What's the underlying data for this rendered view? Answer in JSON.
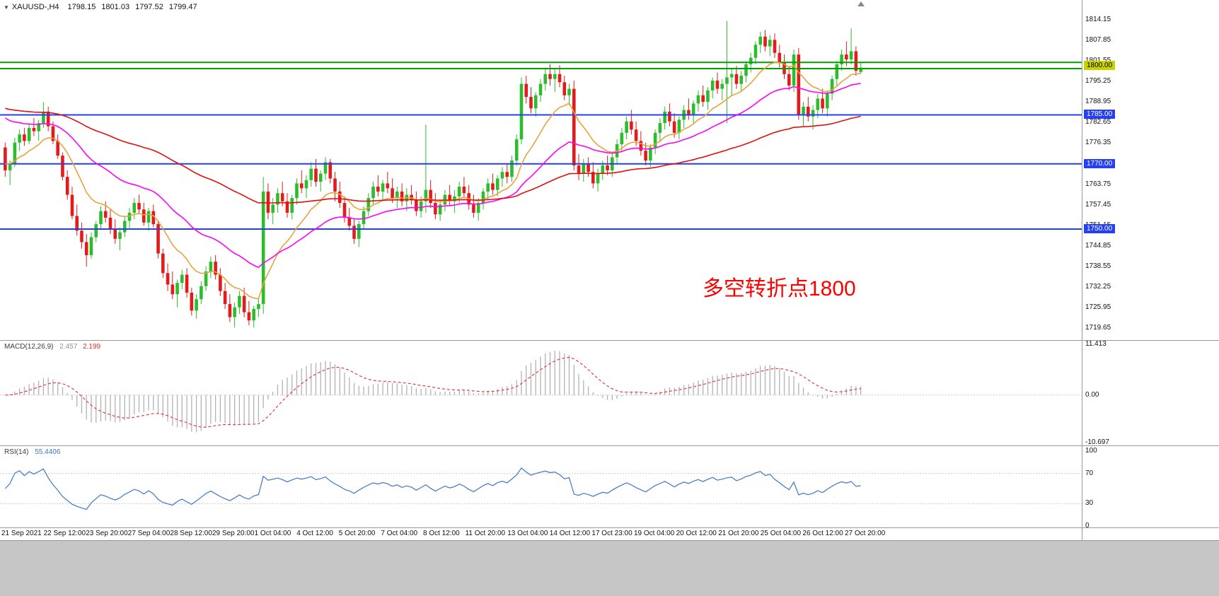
{
  "symbol_bar": {
    "dropdown_icon": "▼",
    "symbol": "XAUUSD-,H4",
    "open": "1798.15",
    "high": "1801.03",
    "low": "1797.52",
    "close": "1799.47"
  },
  "annotation": {
    "text": "多空转折点1800",
    "color": "#ff0000"
  },
  "colors": {
    "bull": "#2bbd2b",
    "bear": "#e41b1b",
    "hline_green": "#00a000",
    "hline_blue": "#2440f0",
    "marker_bg": "#c8d200",
    "ma_fast": "#e8a33d",
    "ma_mid": "#ff00ff",
    "ma_slow": "#e01010",
    "macd_hist": "#b2b2b2",
    "macd_signal": "#e03030",
    "rsi_line": "#3f76c8",
    "panel_border": "#999999",
    "level_dotted": "#c8c8c8"
  },
  "chart_data": {
    "type": "candlestick",
    "title": "XAUUSD-,H4",
    "timeframe": "H4",
    "ylim": [
      1719.65,
      1814.15
    ],
    "price_ticks": [
      "1814.15",
      "1807.85",
      "1801.55",
      "1795.25",
      "1788.95",
      "1782.65",
      "1776.35",
      "1770.05",
      "1763.75",
      "1757.45",
      "1751.15",
      "1744.85",
      "1738.55",
      "1732.25",
      "1725.95",
      "1719.65"
    ],
    "time_labels": [
      "21 Sep 2021",
      "22 Sep 12:00",
      "23 Sep 20:00",
      "27 Sep 04:00",
      "28 Sep 12:00",
      "29 Sep 20:00",
      "1 Oct 04:00",
      "4 Oct 12:00",
      "5 Oct 20:00",
      "7 Oct 04:00",
      "8 Oct 12:00",
      "11 Oct 20:00",
      "13 Oct 04:00",
      "14 Oct 12:00",
      "17 Oct 23:00",
      "19 Oct 04:00",
      "20 Oct 12:00",
      "21 Oct 20:00",
      "25 Oct 04:00",
      "26 Oct 12:00",
      "27 Oct 20:00"
    ],
    "candles": [
      [
        1775,
        1776.5,
        1766,
        1768
      ],
      [
        1768,
        1771,
        1763.5,
        1770
      ],
      [
        1770,
        1778,
        1769,
        1776.5
      ],
      [
        1776.5,
        1780.5,
        1774,
        1779
      ],
      [
        1779,
        1781,
        1775.5,
        1777
      ],
      [
        1777,
        1782,
        1776,
        1781
      ],
      [
        1781,
        1784,
        1778.5,
        1780
      ],
      [
        1780,
        1783.5,
        1777,
        1782.5
      ],
      [
        1782.5,
        1788.9,
        1781,
        1786
      ],
      [
        1786,
        1787.5,
        1780,
        1781.5
      ],
      [
        1781.5,
        1783,
        1776,
        1777
      ],
      [
        1777,
        1779,
        1771.5,
        1772.5
      ],
      [
        1772.5,
        1773.5,
        1765,
        1766
      ],
      [
        1766,
        1768,
        1759,
        1760.5
      ],
      [
        1760.5,
        1763,
        1753,
        1754
      ],
      [
        1754,
        1757.5,
        1748,
        1749.5
      ],
      [
        1749.5,
        1752,
        1744,
        1746
      ],
      [
        1746,
        1748.5,
        1738.5,
        1742
      ],
      [
        1742,
        1749,
        1741,
        1747.5
      ],
      [
        1747.5,
        1752.5,
        1746,
        1751.5
      ],
      [
        1751.5,
        1757,
        1750,
        1755.5
      ],
      [
        1755.5,
        1758.5,
        1752,
        1753.5
      ],
      [
        1753.5,
        1756,
        1748.5,
        1750
      ],
      [
        1750,
        1753,
        1745.5,
        1747
      ],
      [
        1747,
        1750.5,
        1743.5,
        1749
      ],
      [
        1749,
        1754,
        1747.5,
        1752.5
      ],
      [
        1752.5,
        1756.5,
        1750,
        1755
      ],
      [
        1755,
        1759.5,
        1753,
        1758
      ],
      [
        1758,
        1760.5,
        1754.5,
        1756
      ],
      [
        1756,
        1758,
        1751,
        1752
      ],
      [
        1752,
        1756.5,
        1749.5,
        1755.5
      ],
      [
        1755.5,
        1757.5,
        1750.5,
        1751.5
      ],
      [
        1751.5,
        1752.5,
        1741,
        1742.5
      ],
      [
        1742.5,
        1744,
        1735,
        1736.5
      ],
      [
        1736.5,
        1739.5,
        1731,
        1733
      ],
      [
        1733,
        1737,
        1728.5,
        1730
      ],
      [
        1730,
        1734.5,
        1726,
        1733.5
      ],
      [
        1733.5,
        1737.5,
        1731.5,
        1736
      ],
      [
        1736,
        1738,
        1729,
        1730.5
      ],
      [
        1730.5,
        1732,
        1723.5,
        1725
      ],
      [
        1725,
        1730,
        1722.5,
        1728.5
      ],
      [
        1728.5,
        1734,
        1727,
        1732.5
      ],
      [
        1732.5,
        1738.5,
        1731,
        1737
      ],
      [
        1737,
        1741.5,
        1735,
        1740
      ],
      [
        1740,
        1742,
        1734.5,
        1736
      ],
      [
        1736,
        1738,
        1729.5,
        1731
      ],
      [
        1731,
        1733.5,
        1725.5,
        1727
      ],
      [
        1727,
        1730,
        1721.5,
        1723
      ],
      [
        1723,
        1727.5,
        1719.8,
        1726
      ],
      [
        1726,
        1731,
        1724,
        1729.5
      ],
      [
        1729.5,
        1732,
        1723,
        1724.5
      ],
      [
        1724.5,
        1728,
        1720.5,
        1722
      ],
      [
        1722,
        1726.5,
        1719.8,
        1725.5
      ],
      [
        1725.5,
        1729,
        1723,
        1727
      ],
      [
        1727,
        1766,
        1724,
        1761.5
      ],
      [
        1761.5,
        1764,
        1753,
        1755
      ],
      [
        1755,
        1759.5,
        1751.5,
        1757.5
      ],
      [
        1757.5,
        1762.5,
        1755,
        1761
      ],
      [
        1761,
        1764.5,
        1757,
        1758.5
      ],
      [
        1758.5,
        1761,
        1753.5,
        1755
      ],
      [
        1755,
        1760.5,
        1753,
        1759.5
      ],
      [
        1759.5,
        1765.5,
        1757.5,
        1764
      ],
      [
        1764,
        1768,
        1761,
        1762.5
      ],
      [
        1762.5,
        1766.5,
        1759.5,
        1765
      ],
      [
        1765,
        1770.5,
        1763,
        1768.5
      ],
      [
        1768.5,
        1771.5,
        1763,
        1764.5
      ],
      [
        1764.5,
        1768,
        1761.5,
        1767
      ],
      [
        1767,
        1772,
        1765,
        1770.5
      ],
      [
        1770.5,
        1771.5,
        1764,
        1765.5
      ],
      [
        1765.5,
        1767.5,
        1758.5,
        1761.5
      ],
      [
        1761.5,
        1764.5,
        1756.5,
        1758
      ],
      [
        1758,
        1760,
        1752,
        1753.5
      ],
      [
        1753.5,
        1756.5,
        1749.5,
        1751
      ],
      [
        1751,
        1753,
        1745.5,
        1747
      ],
      [
        1747,
        1752.5,
        1744.5,
        1751.5
      ],
      [
        1751.5,
        1757,
        1750,
        1755.5
      ],
      [
        1755.5,
        1761,
        1754,
        1759.5
      ],
      [
        1759.5,
        1764.5,
        1757.5,
        1763
      ],
      [
        1763,
        1766.5,
        1760,
        1761.5
      ],
      [
        1761.5,
        1765,
        1758.5,
        1764
      ],
      [
        1764,
        1767.5,
        1761,
        1762.5
      ],
      [
        1762.5,
        1765.5,
        1758,
        1759.5
      ],
      [
        1759.5,
        1763,
        1756.5,
        1761.5
      ],
      [
        1761.5,
        1764,
        1757,
        1758.5
      ],
      [
        1758.5,
        1762.5,
        1755.5,
        1760.5
      ],
      [
        1760.5,
        1763.5,
        1757.5,
        1759
      ],
      [
        1759,
        1761.5,
        1754,
        1755.5
      ],
      [
        1755.5,
        1760,
        1753.5,
        1758.5
      ],
      [
        1758.5,
        1782,
        1755,
        1762
      ],
      [
        1762,
        1765,
        1756.5,
        1758
      ],
      [
        1758,
        1761,
        1753,
        1754.5
      ],
      [
        1754.5,
        1759,
        1752.5,
        1757.5
      ],
      [
        1757.5,
        1762,
        1755.5,
        1760.5
      ],
      [
        1760.5,
        1763.5,
        1757,
        1758.5
      ],
      [
        1758.5,
        1762,
        1755,
        1760
      ],
      [
        1760,
        1764.5,
        1758,
        1763
      ],
      [
        1763,
        1766,
        1759.5,
        1761
      ],
      [
        1761,
        1763.5,
        1756,
        1757.5
      ],
      [
        1757.5,
        1760.5,
        1753.5,
        1755
      ],
      [
        1755,
        1759.5,
        1752.5,
        1758
      ],
      [
        1758,
        1762.5,
        1756,
        1761.5
      ],
      [
        1761.5,
        1765.5,
        1759,
        1764
      ],
      [
        1764,
        1767,
        1760.5,
        1762
      ],
      [
        1762,
        1766.5,
        1760,
        1765.5
      ],
      [
        1765.5,
        1769,
        1763,
        1767.5
      ],
      [
        1767.5,
        1770,
        1764,
        1766
      ],
      [
        1766,
        1772.5,
        1764.5,
        1771
      ],
      [
        1771,
        1779,
        1769.5,
        1777.5
      ],
      [
        1777.5,
        1796.5,
        1776,
        1794.5
      ],
      [
        1794.5,
        1797,
        1788.5,
        1790.5
      ],
      [
        1790.5,
        1793.5,
        1785.5,
        1787
      ],
      [
        1787,
        1792,
        1784.5,
        1791
      ],
      [
        1791,
        1796,
        1789,
        1794.5
      ],
      [
        1794.5,
        1799.5,
        1792.5,
        1797.5
      ],
      [
        1797.5,
        1800.5,
        1794,
        1796
      ],
      [
        1796,
        1799,
        1792,
        1797.5
      ],
      [
        1797.5,
        1800.2,
        1793.5,
        1795
      ],
      [
        1795,
        1797,
        1789.5,
        1791
      ],
      [
        1791,
        1794.5,
        1788,
        1793
      ],
      [
        1793,
        1795.5,
        1768,
        1769.5
      ],
      [
        1769.5,
        1773,
        1765,
        1767
      ],
      [
        1767,
        1771.5,
        1764.5,
        1770
      ],
      [
        1770,
        1772,
        1766,
        1767.5
      ],
      [
        1767.5,
        1770.5,
        1762.5,
        1764
      ],
      [
        1764,
        1768.5,
        1761.5,
        1767
      ],
      [
        1767,
        1771,
        1765,
        1769.5
      ],
      [
        1769.5,
        1772.5,
        1766.5,
        1768
      ],
      [
        1768,
        1773.5,
        1766,
        1772
      ],
      [
        1772,
        1777.5,
        1770,
        1776
      ],
      [
        1776,
        1781,
        1774,
        1779.5
      ],
      [
        1779.5,
        1784.5,
        1777.5,
        1783
      ],
      [
        1783,
        1786.5,
        1779,
        1780.5
      ],
      [
        1780.5,
        1783,
        1775.5,
        1777
      ],
      [
        1777,
        1780,
        1772.5,
        1774
      ],
      [
        1774,
        1776.5,
        1769.5,
        1771
      ],
      [
        1771,
        1776,
        1769,
        1775
      ],
      [
        1775,
        1780.5,
        1773,
        1779.5
      ],
      [
        1779.5,
        1784,
        1777,
        1782.5
      ],
      [
        1782.5,
        1787.5,
        1780.5,
        1786
      ],
      [
        1786,
        1788.5,
        1781.5,
        1783
      ],
      [
        1783,
        1785.5,
        1778,
        1779.5
      ],
      [
        1779.5,
        1784.5,
        1777.5,
        1783.5
      ],
      [
        1783.5,
        1788,
        1781,
        1786.5
      ],
      [
        1786.5,
        1790,
        1783.5,
        1785
      ],
      [
        1785,
        1789.5,
        1782.5,
        1788.5
      ],
      [
        1788.5,
        1792.5,
        1786,
        1791
      ],
      [
        1791,
        1794,
        1787.5,
        1789
      ],
      [
        1789,
        1793.5,
        1786.5,
        1792.5
      ],
      [
        1792.5,
        1796.5,
        1790,
        1795.5
      ],
      [
        1795.5,
        1798,
        1791.5,
        1793
      ],
      [
        1793,
        1796,
        1789.5,
        1794.5
      ],
      [
        1794.5,
        1813.8,
        1782.5,
        1796.5
      ],
      [
        1796.5,
        1799,
        1791,
        1797.5
      ],
      [
        1797.5,
        1800,
        1793,
        1794.5
      ],
      [
        1794.5,
        1798.5,
        1792,
        1797
      ],
      [
        1797,
        1801.5,
        1795,
        1800.5
      ],
      [
        1800.5,
        1804,
        1798,
        1802.5
      ],
      [
        1802.5,
        1807.5,
        1800.5,
        1806.5
      ],
      [
        1806.5,
        1810.5,
        1804,
        1809
      ],
      [
        1809,
        1811,
        1804.5,
        1806
      ],
      [
        1806,
        1809.5,
        1803,
        1808
      ],
      [
        1808,
        1810,
        1802.5,
        1804
      ],
      [
        1804,
        1806.5,
        1799.5,
        1801
      ],
      [
        1801,
        1803.5,
        1796,
        1797.5
      ],
      [
        1797.5,
        1800,
        1792.5,
        1794
      ],
      [
        1794,
        1805,
        1792,
        1803.5
      ],
      [
        1803.5,
        1805.5,
        1783.5,
        1785
      ],
      [
        1785,
        1789,
        1781.5,
        1787.5
      ],
      [
        1787.5,
        1790.5,
        1783,
        1784.5
      ],
      [
        1784.5,
        1788,
        1780.5,
        1786.5
      ],
      [
        1786.5,
        1791.5,
        1784,
        1790
      ],
      [
        1790,
        1793,
        1785.5,
        1787
      ],
      [
        1787,
        1792.5,
        1784.5,
        1791.5
      ],
      [
        1791.5,
        1797,
        1789.5,
        1796
      ],
      [
        1796,
        1801.5,
        1794,
        1800.5
      ],
      [
        1800.5,
        1805,
        1798.5,
        1803.5
      ],
      [
        1803.5,
        1807.5,
        1800,
        1802
      ],
      [
        1802,
        1811.5,
        1800.5,
        1804.5
      ],
      [
        1804.5,
        1806,
        1797,
        1798.5
      ],
      [
        1798.15,
        1801.03,
        1797.52,
        1799.47
      ]
    ],
    "moving_averages": [
      {
        "name": "fast-ma",
        "period": 13,
        "seed": 1770,
        "color_key": "ma_fast"
      },
      {
        "name": "mid-ma",
        "period": 34,
        "seed": 1784,
        "color_key": "ma_mid"
      },
      {
        "name": "slow-ma",
        "period": 96,
        "seed": 1787,
        "color_key": "ma_slow"
      }
    ],
    "horizontal_lines": [
      {
        "price": 1801.1,
        "color_key": "hline_green",
        "width": 2
      },
      {
        "price": 1799.2,
        "color_key": "hline_green",
        "width": 2
      },
      {
        "price": 1785.0,
        "color_key": "hline_blue",
        "width": 2,
        "badge": "1785.00"
      },
      {
        "price": 1770.0,
        "color_key": "hline_blue",
        "width": 2,
        "badge": "1770.00"
      },
      {
        "price": 1750.0,
        "color_key": "hline_blue",
        "width": 2,
        "badge": "1750.00"
      }
    ],
    "price_marker": {
      "price": 1800.0,
      "label": "1800.00"
    },
    "macd": {
      "label": "MACD(12,26,9)",
      "value_main": "2.457",
      "value_signal": "2.199",
      "fast": 12,
      "slow": 26,
      "signal": 9,
      "axis_ticks": [
        "11.413",
        "0.00",
        "-10.697"
      ],
      "range": [
        -10.697,
        11.413
      ]
    },
    "rsi": {
      "label": "RSI(14)",
      "value": "55.4406",
      "period": 14,
      "axis_ticks": [
        "100",
        "70",
        "30",
        "0"
      ],
      "levels": [
        70,
        30
      ],
      "range": [
        0,
        100
      ]
    }
  }
}
